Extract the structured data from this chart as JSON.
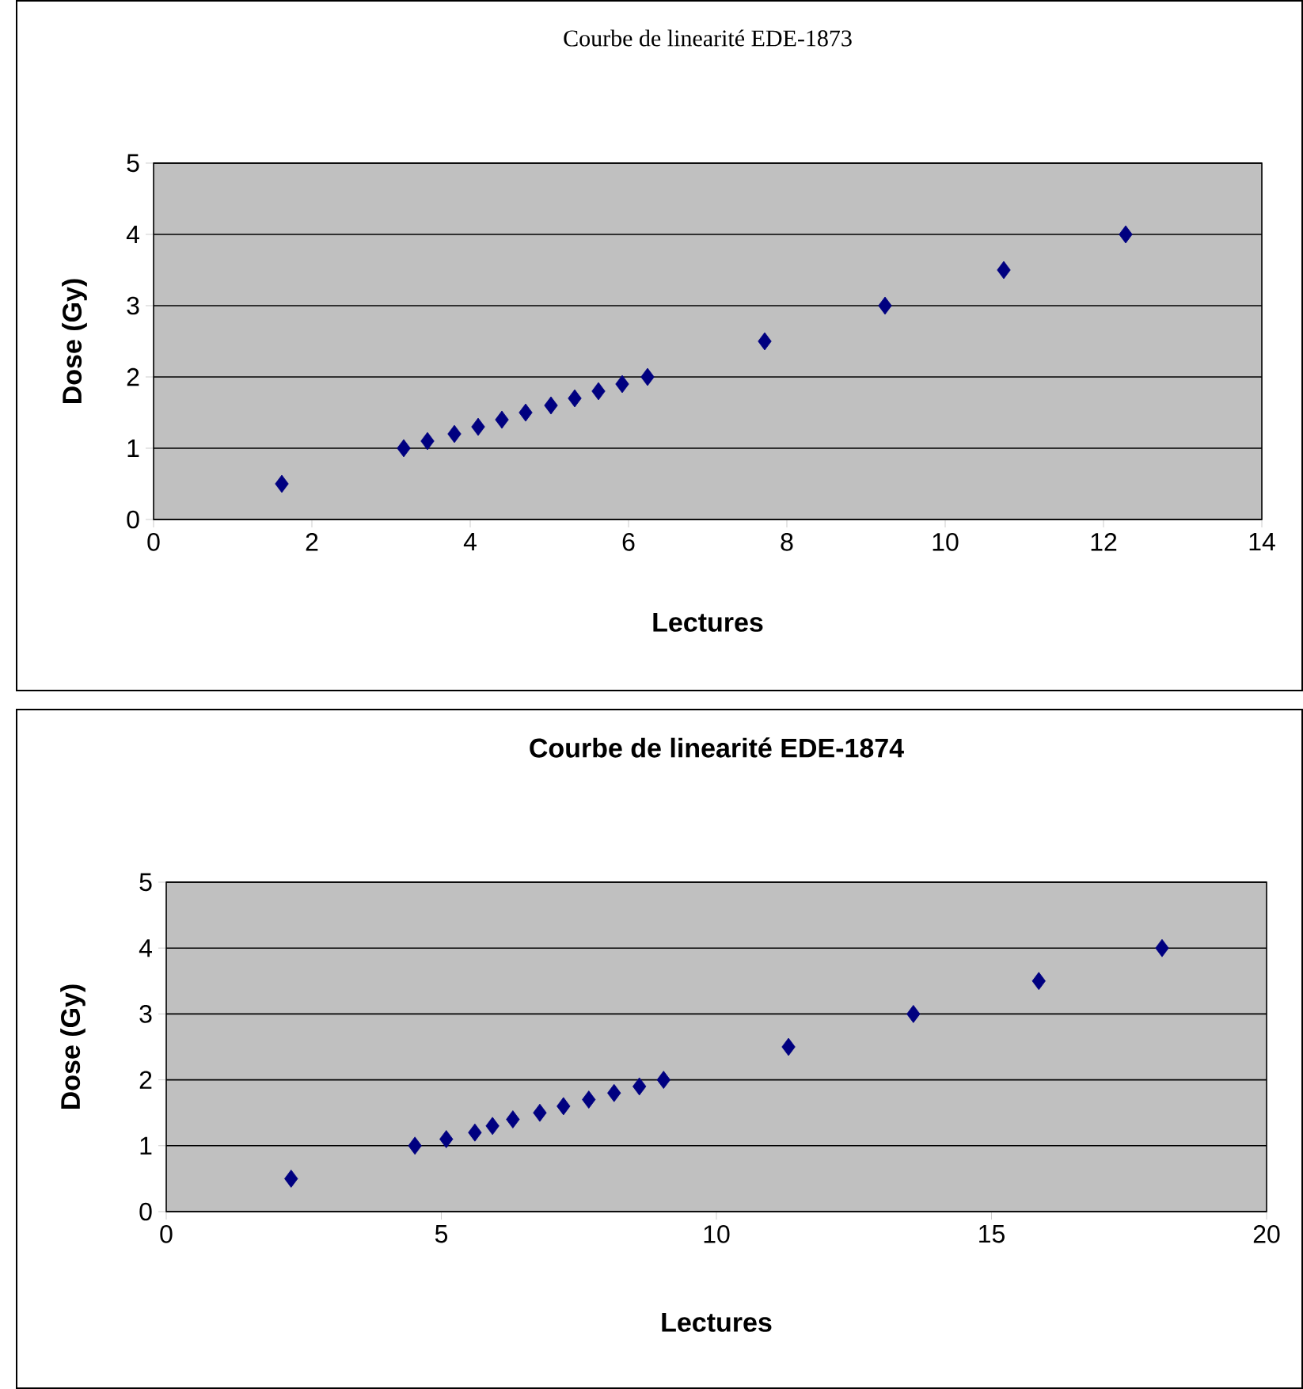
{
  "chart_data": [
    {
      "type": "scatter",
      "title": "Courbe de linearité EDE-1873",
      "xlabel": "Lectures",
      "ylabel": "Dose (Gy)",
      "x": [
        1.62,
        3.16,
        3.46,
        3.8,
        4.1,
        4.4,
        4.7,
        5.02,
        5.32,
        5.62,
        5.92,
        6.24,
        7.72,
        9.24,
        10.74,
        12.28
      ],
      "series": [
        {
          "color": "#000080",
          "values": [
            0.5,
            1.0,
            1.1,
            1.2,
            1.3,
            1.4,
            1.5,
            1.6,
            1.7,
            1.8,
            1.9,
            2.0,
            2.5,
            3.0,
            3.5,
            4.0
          ]
        }
      ],
      "xlim": [
        0,
        14
      ],
      "xticks": [
        0,
        2,
        4,
        6,
        8,
        10,
        12,
        14
      ],
      "ylim": [
        0,
        5
      ],
      "yticks": [
        0,
        1,
        2,
        3,
        4,
        5
      ],
      "grid": "y",
      "marker": "diamond"
    },
    {
      "type": "scatter",
      "title": "Courbe de linearité EDE-1874",
      "xlabel": "Lectures",
      "ylabel": "Dose (Gy)",
      "x": [
        2.27,
        4.52,
        5.09,
        5.61,
        5.93,
        6.3,
        6.79,
        7.22,
        7.68,
        8.14,
        8.6,
        9.04,
        11.31,
        13.58,
        15.86,
        18.1
      ],
      "series": [
        {
          "color": "#000080",
          "values": [
            0.5,
            1.0,
            1.1,
            1.2,
            1.3,
            1.4,
            1.5,
            1.6,
            1.7,
            1.8,
            1.9,
            2.0,
            2.5,
            3.0,
            3.5,
            4.0
          ]
        }
      ],
      "xlim": [
        0,
        20
      ],
      "xticks": [
        0,
        5,
        10,
        15,
        20
      ],
      "ylim": [
        0,
        5
      ],
      "yticks": [
        0,
        1,
        2,
        3,
        4,
        5
      ],
      "grid": "y",
      "marker": "diamond"
    }
  ]
}
